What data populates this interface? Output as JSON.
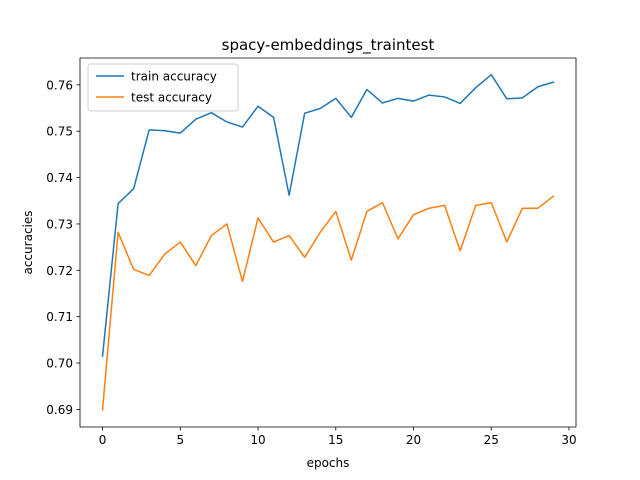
{
  "chart_data": {
    "type": "line",
    "title": "spacy-embeddings_traintest",
    "xlabel": "epochs",
    "ylabel": "accuracies",
    "xlim": [
      -1.45,
      30.45
    ],
    "ylim": [
      0.6862,
      0.7658
    ],
    "x_ticks": [
      0,
      5,
      10,
      15,
      20,
      25,
      30
    ],
    "x_tick_labels": [
      "0",
      "5",
      "10",
      "15",
      "20",
      "25",
      "30"
    ],
    "y_ticks": [
      0.69,
      0.7,
      0.71,
      0.72,
      0.73,
      0.74,
      0.75,
      0.76
    ],
    "y_tick_labels": [
      "0.69",
      "0.70",
      "0.71",
      "0.72",
      "0.73",
      "0.74",
      "0.75",
      "0.76"
    ],
    "grid": false,
    "legend_position": "upper-left",
    "x": [
      0,
      1,
      2,
      3,
      4,
      5,
      6,
      7,
      8,
      9,
      10,
      11,
      12,
      13,
      14,
      15,
      16,
      17,
      18,
      19,
      20,
      21,
      22,
      23,
      24,
      25,
      26,
      27,
      28,
      29
    ],
    "series": [
      {
        "name": "train accuracy",
        "color": "#1f77b4",
        "values": [
          0.7015,
          0.7344,
          0.7376,
          0.7503,
          0.7501,
          0.7496,
          0.7526,
          0.754,
          0.752,
          0.7509,
          0.7554,
          0.753,
          0.7362,
          0.7539,
          0.7549,
          0.7571,
          0.753,
          0.759,
          0.7561,
          0.7571,
          0.7565,
          0.7578,
          0.7574,
          0.756,
          0.7594,
          0.7622,
          0.757,
          0.7572,
          0.7596,
          0.7606
        ]
      },
      {
        "name": "test accuracy",
        "color": "#ff7f0e",
        "values": [
          0.6899,
          0.7282,
          0.7202,
          0.7189,
          0.7235,
          0.7261,
          0.721,
          0.7275,
          0.73,
          0.7176,
          0.7313,
          0.7261,
          0.7275,
          0.7228,
          0.7282,
          0.7327,
          0.7222,
          0.7327,
          0.7346,
          0.7268,
          0.732,
          0.7334,
          0.734,
          0.7242,
          0.734,
          0.7346,
          0.7261,
          0.7334,
          0.7334,
          0.736
        ]
      }
    ]
  }
}
